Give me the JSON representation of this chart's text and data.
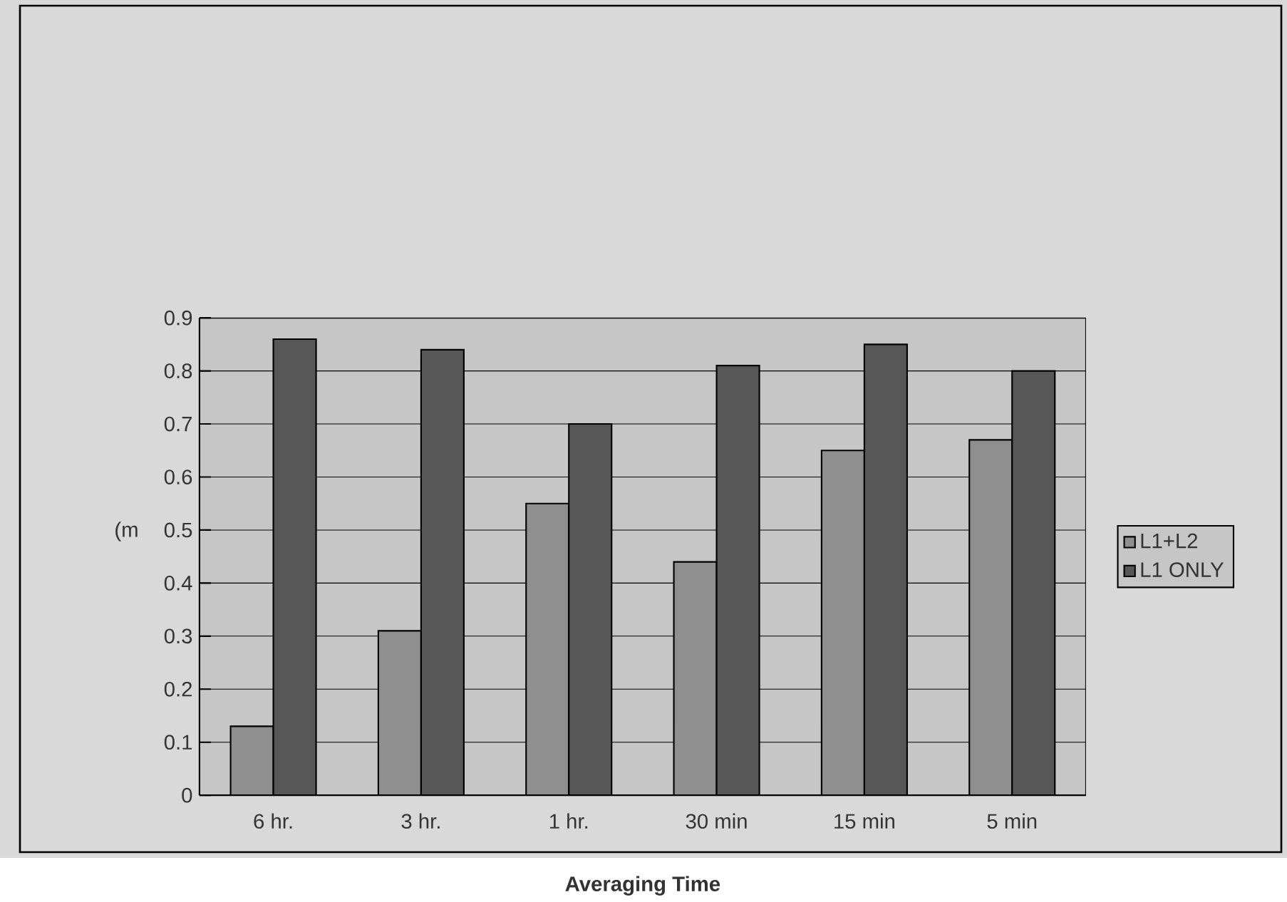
{
  "chart_data": {
    "type": "bar",
    "xlabel": "Averaging Time",
    "ylabel": "(m",
    "categories": [
      "6 hr.",
      "3 hr.",
      "1 hr.",
      "30 min",
      "15 min",
      "5 min"
    ],
    "series": [
      {
        "name": "L1+L2",
        "color": "#8f8f8f",
        "values": [
          0.13,
          0.31,
          0.55,
          0.44,
          0.65,
          0.67
        ]
      },
      {
        "name": "L1 ONLY",
        "color": "#575757",
        "values": [
          0.86,
          0.84,
          0.7,
          0.81,
          0.85,
          0.8
        ]
      }
    ],
    "ylim": [
      0,
      0.9
    ],
    "yticks": [
      0,
      0.1,
      0.2,
      0.3,
      0.4,
      0.5,
      0.6,
      0.7,
      0.8,
      0.9
    ],
    "grid": "y",
    "legend": "right"
  }
}
